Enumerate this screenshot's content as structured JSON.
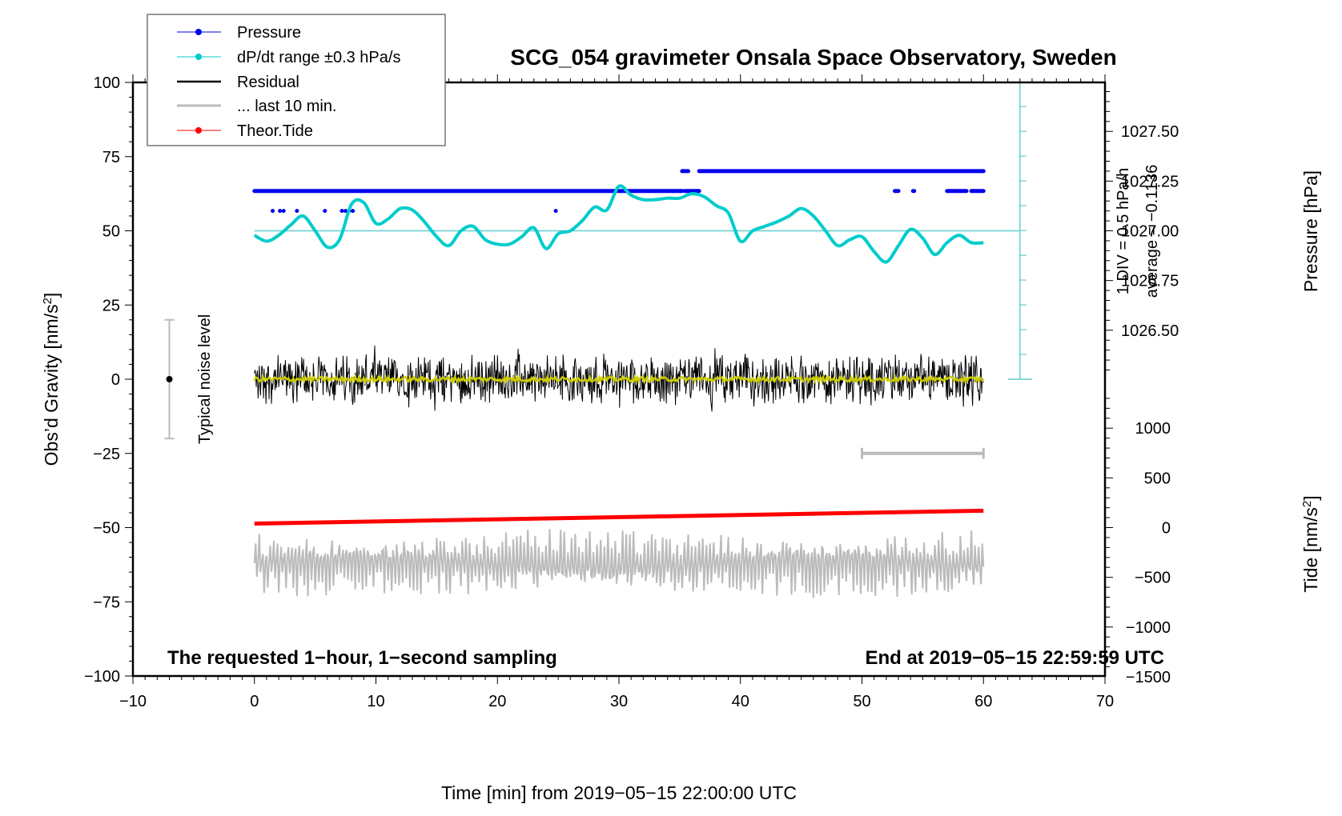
{
  "chart_data": {
    "type": "line",
    "title": "SCG_054 gravimeter Onsala Space Observatory, Sweden",
    "xlabel": "Time [min] from 2019−05−15 22:00:00 UTC",
    "ylabel_left": "Obs’d Gravity [nm/s",
    "ylabel_left_sup": "2",
    "ylabel_left_end": "]",
    "ylabel_right_top": "Pressure [hPa]",
    "ylabel_right_bottom": "Tide [nm/s",
    "ylabel_right_bottom_sup": "2",
    "ylabel_right_bottom_end": "]",
    "xlim": [
      -10,
      70
    ],
    "ylim": [
      -100,
      100
    ],
    "pressure_lim": [
      1026.25,
      1027.75
    ],
    "tide_lim": [
      -1500,
      1500
    ],
    "x_ticks": [
      "−10",
      "0",
      "10",
      "20",
      "30",
      "40",
      "50",
      "60",
      "70"
    ],
    "x_tick_values": [
      -10,
      0,
      10,
      20,
      30,
      40,
      50,
      60,
      70
    ],
    "y_ticks": [
      "−100",
      "−75",
      "−50",
      "−25",
      "0",
      "25",
      "50",
      "75",
      "100"
    ],
    "y_tick_values": [
      -100,
      -75,
      -50,
      -25,
      0,
      25,
      50,
      75,
      100
    ],
    "pressure_ticks": [
      "1026.50",
      "1026.75",
      "1027.00",
      "1027.25",
      "1027.50"
    ],
    "pressure_tick_values": [
      1026.5,
      1026.75,
      1027.0,
      1027.25,
      1027.5
    ],
    "tide_ticks": [
      "−1500",
      "−1000",
      "−500",
      "0",
      "500",
      "1000"
    ],
    "tide_tick_values": [
      -1500,
      -1000,
      -500,
      0,
      500,
      1000
    ],
    "grid": false,
    "legend_position": "top-left",
    "legend": [
      {
        "label": "Pressure",
        "color": "#0000ee",
        "marker": "dot"
      },
      {
        "label": "dP/dt range ±0.3 hPa/s",
        "color": "#00cccc",
        "marker": "dot"
      },
      {
        "label": "Residual",
        "color": "#000000",
        "marker": "line"
      },
      {
        "label": "... last 10 min.",
        "color": "#bbbbbb",
        "marker": "line"
      },
      {
        "label": "Theor.Tide",
        "color": "#ff0000",
        "marker": "dot"
      }
    ],
    "series": [
      {
        "name": "Pressure",
        "color": "#0000ee",
        "unit": "hPa",
        "levels_hPa": [
          1027.2,
          1027.3,
          1027.1
        ],
        "segments": [
          {
            "level": 1027.2,
            "x_start": 0,
            "x_end": 35.2
          },
          {
            "level": 1027.2,
            "x_start": 35.4,
            "x_end": 36.6
          },
          {
            "level": 1027.3,
            "x_start": 35.2,
            "x_end": 35.7
          },
          {
            "level": 1027.3,
            "x_start": 36.6,
            "x_end": 60
          },
          {
            "level": 1027.2,
            "x_start": 52.7,
            "x_end": 53.0
          },
          {
            "level": 1027.2,
            "x_start": 54.2,
            "x_end": 54.3
          },
          {
            "level": 1027.2,
            "x_start": 57.0,
            "x_end": 58.6
          },
          {
            "level": 1027.2,
            "x_start": 59.0,
            "x_end": 60
          }
        ],
        "isolated_points": [
          {
            "level": 1027.1,
            "x": [
              1.5,
              2.1,
              2.4,
              3.5,
              5.8,
              7.2,
              7.5,
              7.8,
              8.1,
              24.8
            ]
          }
        ]
      },
      {
        "name": "dP/dt",
        "color": "#00cccc",
        "unit": "gravity-axis units (centered at 50)",
        "x": [
          0,
          1,
          2,
          3,
          4,
          5,
          6,
          7,
          8,
          9,
          10,
          11,
          12,
          13,
          14,
          15,
          16,
          17,
          18,
          19,
          20,
          21,
          22,
          23,
          24,
          25,
          26,
          27,
          28,
          29,
          30,
          31,
          32,
          33,
          34,
          35,
          36,
          37,
          38,
          39,
          40,
          41,
          42,
          43,
          44,
          45,
          46,
          47,
          48,
          49,
          50,
          51,
          52,
          53,
          54,
          55,
          56,
          57,
          58,
          59,
          60
        ],
        "values": [
          48.5,
          46.5,
          48.5,
          52,
          55,
          50,
          44.5,
          47,
          59,
          59.5,
          52.5,
          54,
          57.5,
          57,
          53,
          48,
          45,
          50,
          51.5,
          47,
          45.5,
          45.5,
          48,
          51,
          44,
          49,
          50,
          53.5,
          58,
          57,
          65,
          62,
          60.5,
          60.5,
          61,
          61,
          62.5,
          61.5,
          58.5,
          56,
          46.5,
          50,
          51.5,
          53,
          55,
          57.5,
          55,
          50,
          45,
          47,
          48,
          43,
          39.5,
          45,
          50.5,
          47.5,
          42,
          46,
          48.5,
          46,
          46
        ]
      },
      {
        "name": "Residual",
        "color": "#000000",
        "unit": "nm/s2",
        "x_range": [
          0,
          60
        ],
        "approx_range": [
          -13,
          14
        ],
        "mean": 0
      },
      {
        "name": "Residual smoothed",
        "color": "#cccc00",
        "unit": "nm/s2",
        "x_range": [
          0,
          60
        ],
        "approx_value": 0
      },
      {
        "name": "... last 10 min.",
        "color": "#bbbbbb",
        "unit": "nm/s2",
        "x_range": [
          0,
          60
        ],
        "center": -62,
        "approx_range": [
          -75,
          -50
        ]
      },
      {
        "name": "Theor.Tide",
        "color": "#ff0000",
        "unit": "nm/s2 (tide axis)",
        "x": [
          0,
          60
        ],
        "values": [
          40,
          170
        ]
      }
    ],
    "annotations": {
      "noise_label": "Typical noise level",
      "noise_bar": {
        "x": -7,
        "center": 0,
        "low": -20,
        "high": 20
      },
      "last10_bar": {
        "x_start": 50,
        "x_end": 60,
        "y": -25
      },
      "pressure_zero_line": 50,
      "pressure_scale_bar_x": 63,
      "div_label": "1 DIV = 0.5 hPa/h",
      "average_label": "average = −0.1136",
      "bottom_left": "The requested 1−hour, 1−second sampling",
      "bottom_right": "End at 2019−05−15 22:59:59 UTC"
    }
  }
}
